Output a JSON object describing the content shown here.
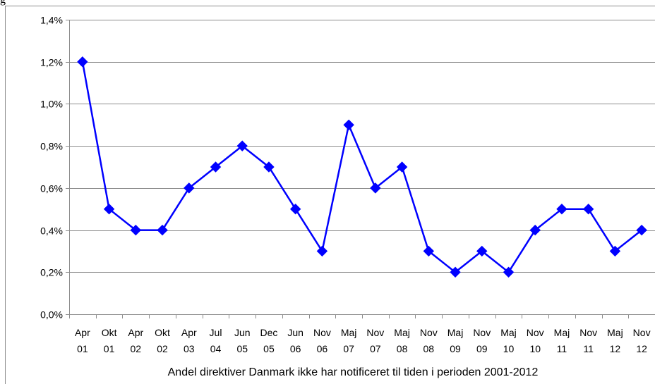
{
  "figure_label": "g",
  "chart_data": {
    "type": "line",
    "title": "",
    "xlabel": "Andel direktiver Danmark ikke har notificeret til tiden i perioden 2001-2012",
    "ylabel": "",
    "ylim": [
      0,
      1.4
    ],
    "yticks": [
      0,
      0.2,
      0.4,
      0.6,
      0.8,
      1.0,
      1.2,
      1.4
    ],
    "ytick_labels": [
      "0,0%",
      "0,2%",
      "0,4%",
      "0,6%",
      "0,8%",
      "1,0%",
      "1,2%",
      "1,4%"
    ],
    "grid": true,
    "legend": "none",
    "categories": [
      [
        "Apr",
        "01"
      ],
      [
        "Okt",
        "01"
      ],
      [
        "Apr",
        "02"
      ],
      [
        "Okt",
        "02"
      ],
      [
        "Apr",
        "03"
      ],
      [
        "Jul",
        "04"
      ],
      [
        "Jun",
        "05"
      ],
      [
        "Dec",
        "05"
      ],
      [
        "Jun",
        "06"
      ],
      [
        "Nov",
        "06"
      ],
      [
        "Maj",
        "07"
      ],
      [
        "Nov",
        "07"
      ],
      [
        "Maj",
        "08"
      ],
      [
        "Nov",
        "08"
      ],
      [
        "Maj",
        "09"
      ],
      [
        "Nov",
        "09"
      ],
      [
        "Maj",
        "10"
      ],
      [
        "Nov",
        "10"
      ],
      [
        "Maj",
        "11"
      ],
      [
        "Nov",
        "11"
      ],
      [
        "Maj",
        "12"
      ],
      [
        "Nov",
        "12"
      ]
    ],
    "series": [
      {
        "values": [
          1.2,
          0.5,
          0.4,
          0.4,
          0.6,
          0.7,
          0.8,
          0.7,
          0.5,
          0.3,
          0.9,
          0.6,
          0.7,
          0.3,
          0.2,
          0.3,
          0.2,
          0.4,
          0.5,
          0.5,
          0.3,
          0.4
        ],
        "color": "#0000ff",
        "marker": "diamond"
      }
    ],
    "colors": {
      "grid": "#8c8c8c",
      "axis": "#8c8c8c"
    }
  }
}
